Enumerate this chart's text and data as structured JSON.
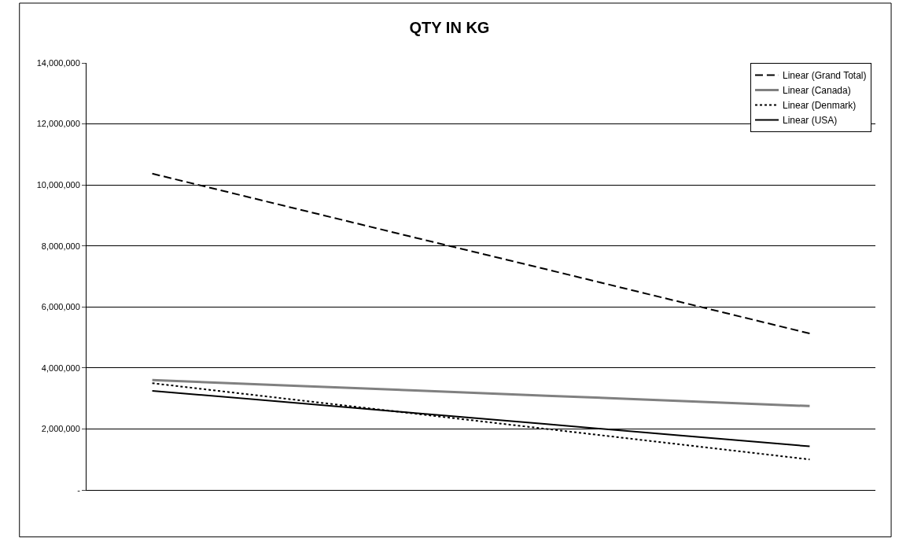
{
  "chart_data": {
    "type": "line",
    "title": "QTY IN KG",
    "categories": [
      null,
      null,
      null,
      null,
      null,
      null
    ],
    "series": [
      {
        "name": "Linear (Grand Total)",
        "color": "#000000",
        "line_style": "dashed",
        "values": [
          10370000,
          9320000,
          8270000,
          7230000,
          6180000,
          5130000
        ]
      },
      {
        "name": "Linear (Canada)",
        "color": "#808080",
        "line_style": "solid",
        "values": [
          3600000,
          3430000,
          3260000,
          3090000,
          2920000,
          2750000
        ]
      },
      {
        "name": "Linear (Denmark)",
        "color": "#000000",
        "line_style": "dotted",
        "values": [
          3500000,
          3000000,
          2500000,
          2000000,
          1500000,
          1000000
        ]
      },
      {
        "name": "Linear (USA)",
        "color": "#000000",
        "line_style": "solid",
        "values": [
          3250000,
          2890000,
          2520000,
          2160000,
          1790000,
          1430000
        ]
      }
    ],
    "ylim": [
      0,
      14000000
    ],
    "yticks": [
      {
        "value": 0,
        "label": "-"
      },
      {
        "value": 2000000,
        "label": "2,000,000"
      },
      {
        "value": 4000000,
        "label": "4,000,000"
      },
      {
        "value": 6000000,
        "label": "6,000,000"
      },
      {
        "value": 8000000,
        "label": "8,000,000"
      },
      {
        "value": 10000000,
        "label": "10,000,000"
      },
      {
        "value": 12000000,
        "label": "12,000,000"
      },
      {
        "value": 14000000,
        "label": "14,000,000"
      }
    ],
    "grid": "y",
    "legend": "top right",
    "marker": "none",
    "tick_labels": "y"
  }
}
